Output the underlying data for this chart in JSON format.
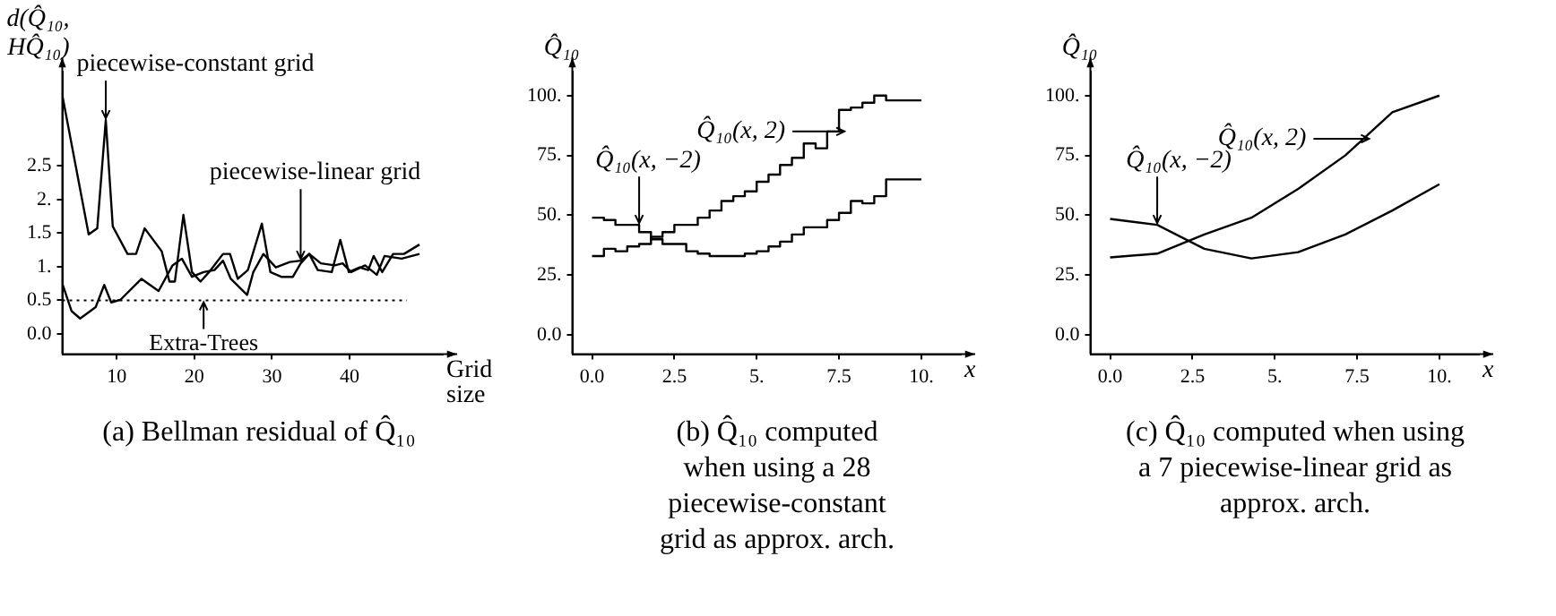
{
  "chart_data": [
    {
      "type": "line",
      "title": "(a) Bellman residual of Q̂₁₀",
      "xlabel": "Grid size",
      "ylabel": "d(Q̂₁₀, HQ̂₁₀)",
      "xlim": [
        3,
        52
      ],
      "xticks": [
        10,
        20,
        30,
        40
      ],
      "ylim": [
        -0.3,
        3.9
      ],
      "yticks": [
        {
          "value": 0,
          "label": "0.0"
        },
        0.5,
        {
          "value": 1,
          "label": "1."
        },
        1.5,
        {
          "value": 2,
          "label": "2."
        },
        2.5
      ],
      "grid": false,
      "legend": false,
      "marker": "none",
      "line_style": "solid",
      "series": [
        {
          "color": "#000000",
          "x": [
            3,
            6.4,
            7.5,
            8.6,
            9.5,
            11.4,
            12.5,
            13.6,
            15.8,
            16.8,
            17.5,
            18.6,
            19.7,
            20.8,
            21.9,
            23.7,
            24.6,
            25.6,
            26.9,
            28.7,
            29.8,
            31.2,
            32.7,
            33.7,
            34.8,
            35.9,
            37.7,
            38.8,
            39.9,
            41.3,
            42.4,
            43.1,
            44.2,
            45.6,
            47,
            49
          ],
          "values": [
            3.55,
            1.48,
            1.57,
            3.18,
            1.6,
            1.19,
            1.19,
            1.57,
            1.23,
            0.78,
            0.78,
            1.77,
            0.92,
            0.78,
            0.92,
            1.19,
            1.19,
            0.82,
            0.95,
            1.64,
            0.92,
            0.85,
            0.85,
            1.05,
            1.19,
            0.95,
            0.92,
            1.4,
            0.92,
            0.99,
            0.95,
            1.16,
            0.92,
            1.19,
            1.19,
            1.33
          ]
        },
        {
          "color": "#000000",
          "x": [
            3,
            4.2,
            5.3,
            7.3,
            8.4,
            9.3,
            10.5,
            13.2,
            15.4,
            17.2,
            18.4,
            19.7,
            21.2,
            22.6,
            23.7,
            24.7,
            26.8,
            27.6,
            28.9,
            30.5,
            32.3,
            33.7,
            34.8,
            36.3,
            38.1,
            39.1,
            40.2,
            42,
            43.5,
            44.5,
            46.7,
            49
          ],
          "values": [
            0.75,
            0.34,
            0.23,
            0.4,
            0.73,
            0.47,
            0.51,
            0.82,
            0.64,
            1.02,
            1.12,
            0.85,
            0.92,
            0.95,
            1.09,
            0.82,
            0.58,
            0.92,
            1.19,
            0.99,
            1.07,
            1.09,
            1.19,
            1.05,
            1.02,
            1.05,
            0.92,
            1.02,
            0.88,
            1.16,
            1.12,
            1.19
          ]
        }
      ],
      "ref_lines": [
        {
          "axis": "y",
          "value": 0.5,
          "line_style": "dotted",
          "color": "#000000"
        }
      ],
      "annotations": [
        {
          "text": "piecewise-constant grid",
          "x": 8.6,
          "y": 3.18
        },
        {
          "text": "piecewise-linear grid",
          "x": 33.7,
          "y": 1.09
        },
        {
          "text": "Extra-Trees",
          "x": 21.2,
          "y": 0.5
        }
      ]
    },
    {
      "type": "step",
      "title": "(b) Q̂₁₀ computed when using a 28 piecewise-constant grid as approx. arch.",
      "xlabel": "x",
      "ylabel": "Q̂₁₀",
      "xlim": [
        -0.6,
        11.2
      ],
      "xticks": [
        {
          "value": 0,
          "label": "0.0"
        },
        2.5,
        {
          "value": 5,
          "label": "5."
        },
        7.5,
        {
          "value": 10,
          "label": "10."
        }
      ],
      "ylim": [
        -8,
        110
      ],
      "yticks": [
        {
          "value": 0,
          "label": "0.0"
        },
        {
          "value": 25,
          "label": "25."
        },
        {
          "value": 50,
          "label": "50."
        },
        {
          "value": 75,
          "label": "75."
        },
        {
          "value": 100,
          "label": "100."
        }
      ],
      "grid": false,
      "legend": false,
      "marker": "none",
      "line_style": "solid",
      "series": [
        {
          "color": "#000000",
          "x": [
            0,
            0.36,
            0.71,
            1.07,
            1.43,
            1.79,
            2.14,
            2.5,
            2.86,
            3.21,
            3.57,
            3.93,
            4.29,
            4.64,
            5,
            5.36,
            5.71,
            6.07,
            6.43,
            6.79,
            7.14,
            7.5,
            7.86,
            8.21,
            8.57,
            8.93,
            9.29,
            9.64,
            10
          ],
          "values": [
            33,
            33,
            36,
            35,
            37,
            38,
            41,
            43,
            46,
            46,
            49,
            52,
            56,
            58,
            60,
            64,
            67,
            71,
            74,
            80,
            78,
            85,
            94,
            95,
            97,
            100,
            98,
            98,
            98
          ]
        },
        {
          "color": "#000000",
          "x": [
            0,
            0.36,
            0.71,
            1.07,
            1.43,
            1.79,
            2.14,
            2.5,
            2.86,
            3.21,
            3.57,
            3.93,
            4.29,
            4.64,
            5,
            5.36,
            5.71,
            6.07,
            6.43,
            6.79,
            7.14,
            7.5,
            7.86,
            8.21,
            8.57,
            8.93,
            9.29,
            9.64,
            10
          ],
          "values": [
            49,
            49,
            48,
            46,
            46,
            43,
            40,
            38,
            38,
            35,
            34,
            33,
            33,
            33,
            34,
            35,
            37,
            39,
            42,
            45,
            45,
            48,
            51,
            56,
            55,
            58,
            65,
            65,
            65
          ]
        }
      ],
      "annotations": [
        {
          "text": "Q̂₁₀(x, 2)",
          "x": 7.5,
          "y": 85
        },
        {
          "text": "Q̂₁₀(x, −2)",
          "x": 1.43,
          "y": 46
        }
      ]
    },
    {
      "type": "line",
      "title": "(c) Q̂₁₀ computed when using a 7 piecewise-linear grid as approx. arch.",
      "xlabel": "x",
      "ylabel": "Q̂₁₀",
      "xlim": [
        -0.6,
        11.2
      ],
      "xticks": [
        {
          "value": 0,
          "label": "0.0"
        },
        2.5,
        {
          "value": 5,
          "label": "5."
        },
        7.5,
        {
          "value": 10,
          "label": "10."
        }
      ],
      "ylim": [
        -8,
        110
      ],
      "yticks": [
        {
          "value": 0,
          "label": "0.0"
        },
        {
          "value": 25,
          "label": "25."
        },
        {
          "value": 50,
          "label": "50."
        },
        {
          "value": 75,
          "label": "75."
        },
        {
          "value": 100,
          "label": "100."
        }
      ],
      "grid": false,
      "legend": false,
      "marker": "none",
      "line_style": "solid",
      "series": [
        {
          "color": "#000000",
          "x": [
            0,
            1.43,
            2.86,
            4.29,
            5.71,
            7.14,
            8.57,
            10
          ],
          "values": [
            32.4,
            34,
            42,
            49,
            61,
            75,
            93,
            100
          ]
        },
        {
          "color": "#000000",
          "x": [
            0,
            1.43,
            2.86,
            4.29,
            5.71,
            7.14,
            8.57,
            10
          ],
          "values": [
            48.5,
            46,
            36,
            32,
            34.6,
            42,
            52,
            63
          ]
        }
      ],
      "annotations": [
        {
          "text": "Q̂₁₀(x, 2)",
          "x": 7.7,
          "y": 82
        },
        {
          "text": "Q̂₁₀(x, −2)",
          "x": 1.43,
          "y": 46
        }
      ]
    }
  ]
}
